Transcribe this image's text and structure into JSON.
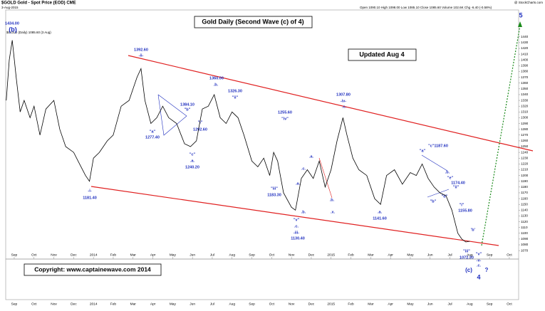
{
  "chart_data": {
    "type": "line",
    "title": "Gold Daily (Second Wave (c) of 4)",
    "subtitle": "Updated Aug 4",
    "header": {
      "symbol": "$GOLD Gold - Spot Price (EOD) CME",
      "date": "3-Aug-2015",
      "quote": "Open 1090.10  High 1098.00  Low 1085.10  Close 1085.60  Volume 102.6K  Chg -6.40 (-0.58%)",
      "source": "@ StockCharts.com"
    },
    "copyright": "Copyright:   www.captainewave.com 2014",
    "series": [
      {
        "name": "$GOLD (Daily) 1085.60 (3 Aug)",
        "color": "#000000",
        "x": [
          -0.4,
          -0.25,
          -0.1,
          0.1,
          0.3,
          0.5,
          0.8,
          1.0,
          1.3,
          1.6,
          2.0,
          2.3,
          2.6,
          3.0,
          3.3,
          3.6,
          3.8,
          4.0,
          4.3,
          4.7,
          5.0,
          5.4,
          5.8,
          6.2,
          6.4,
          6.6,
          6.9,
          7.2,
          7.5,
          7.8,
          8.2,
          8.6,
          8.9,
          9.2,
          9.5,
          9.8,
          10.1,
          10.4,
          10.7,
          11.0,
          11.3,
          11.6,
          12.0,
          12.3,
          12.6,
          12.9,
          13.1,
          13.3,
          13.6,
          14.0,
          14.2,
          14.5,
          14.8,
          15.1,
          15.4,
          15.7,
          16.0,
          16.3,
          16.6,
          16.8,
          17.1,
          17.4,
          17.8,
          18.2,
          18.5,
          18.8,
          19.2,
          19.6,
          20.0,
          20.3,
          20.6,
          20.9,
          21.2,
          21.5,
          21.8,
          22.1,
          22.4,
          22.6,
          22.8,
          23.0
        ],
        "values": [
          1330,
          1400,
          1434,
          1370,
          1310,
          1330,
          1300,
          1320,
          1270,
          1315,
          1330,
          1280,
          1250,
          1240,
          1220,
          1200,
          1190,
          1230,
          1240,
          1260,
          1270,
          1320,
          1330,
          1370,
          1385,
          1330,
          1290,
          1300,
          1320,
          1300,
          1290,
          1255,
          1250,
          1260,
          1315,
          1320,
          1340,
          1300,
          1290,
          1310,
          1300,
          1270,
          1225,
          1215,
          1230,
          1200,
          1240,
          1225,
          1170,
          1145,
          1140,
          1195,
          1210,
          1195,
          1225,
          1180,
          1210,
          1260,
          1300,
          1270,
          1230,
          1210,
          1200,
          1160,
          1150,
          1200,
          1210,
          1185,
          1205,
          1200,
          1220,
          1195,
          1180,
          1170,
          1165,
          1140,
          1100,
          1090,
          1085,
          1086
        ]
      }
    ],
    "xlim": [
      -0.43,
      25.47
    ],
    "xticks": [
      {
        "value": 0,
        "label": "Sep"
      },
      {
        "value": 1,
        "label": "Oct"
      },
      {
        "value": 2,
        "label": "Nov"
      },
      {
        "value": 3,
        "label": "Dec"
      },
      {
        "value": 4,
        "label": "2014"
      },
      {
        "value": 5,
        "label": "Feb"
      },
      {
        "value": 6,
        "label": "Mar"
      },
      {
        "value": 7,
        "label": "Apr"
      },
      {
        "value": 8,
        "label": "May"
      },
      {
        "value": 9,
        "label": "Jun"
      },
      {
        "value": 10,
        "label": "Jul"
      },
      {
        "value": 11,
        "label": "Aug"
      },
      {
        "value": 12,
        "label": "Sep"
      },
      {
        "value": 13,
        "label": "Oct"
      },
      {
        "value": 14,
        "label": "Nov"
      },
      {
        "value": 15,
        "label": "Dec"
      },
      {
        "value": 16,
        "label": "2015"
      },
      {
        "value": 17,
        "label": "Feb"
      },
      {
        "value": 18,
        "label": "Mar"
      },
      {
        "value": 19,
        "label": "Apr"
      },
      {
        "value": 20,
        "label": "May"
      },
      {
        "value": 21,
        "label": "Jun"
      },
      {
        "value": 22,
        "label": "Jul"
      },
      {
        "value": 23,
        "label": "Aug"
      },
      {
        "value": 24,
        "label": "Sep"
      },
      {
        "value": 25,
        "label": "Oct"
      }
    ],
    "ylim": [
      1064,
      1489
    ],
    "yticks": [
      1070,
      1080,
      1090,
      1100,
      1110,
      1120,
      1130,
      1140,
      1150,
      1160,
      1170,
      1180,
      1190,
      1200,
      1210,
      1220,
      1230,
      1240,
      1250,
      1260,
      1270,
      1280,
      1290,
      1300,
      1310,
      1320,
      1330,
      1340,
      1350,
      1360,
      1370,
      1380,
      1390,
      1400,
      1410,
      1420,
      1430,
      1440
    ],
    "annotations": [
      "1434.00",
      "(b)",
      "1392.60",
      "-ii-",
      "1384.10",
      "\"b\"",
      "\"a\"",
      "1277.40",
      "\"c\"",
      ".a.",
      "1240.20",
      "1360.00",
      ".b.",
      "1326.30",
      "\"ii\"",
      "\"i\"",
      "1292.60",
      "1255.60",
      "\"iv\"",
      "\"iii\"",
      "1183.30",
      ".a.",
      ".c.",
      ".a.",
      ".b.",
      ".x.",
      ".b.",
      "\"v\"",
      ".c.",
      "-iii-",
      "1130.40",
      "1307.80",
      "-iv-",
      ".c.",
      ".a.",
      "1141.60",
      "\"a\"",
      "\"c\"1187.60",
      ".b.",
      "\"e\"",
      "1174.40",
      "\"d\"",
      "\"ii\"",
      "\"b\"",
      "\"i\"",
      "1155.80",
      "'b'",
      "\"iii\"",
      "1072.30",
      "\"v\"",
      "-v-",
      ".c.",
      "(c)",
      "4",
      "?",
      "5",
      "-i-",
      "1181.40"
    ]
  }
}
